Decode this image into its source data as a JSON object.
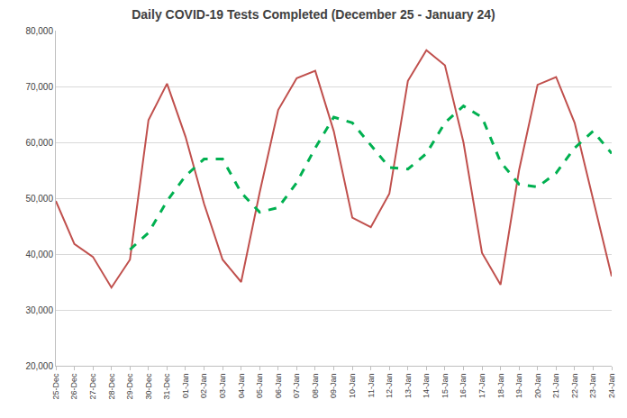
{
  "chart_data": {
    "type": "line",
    "title": "Daily COVID-19 Tests Completed (December 25 - January 24)",
    "categories": [
      "25-Dec",
      "26-Dec",
      "27-Dec",
      "28-Dec",
      "29-Dec",
      "30-Dec",
      "31-Dec",
      "01-Jan",
      "02-Jan",
      "03-Jan",
      "04-Jan",
      "05-Jan",
      "06-Jan",
      "07-Jan",
      "08-Jan",
      "09-Jan",
      "10-Jan",
      "11-Jan",
      "12-Jan",
      "13-Jan",
      "14-Jan",
      "15-Jan",
      "16-Jan",
      "17-Jan",
      "18-Jan",
      "19-Jan",
      "20-Jan",
      "21-Jan",
      "22-Jan",
      "23-Jan",
      "24-Jan"
    ],
    "series": [
      {
        "color": "#c0504d",
        "line_style": "solid",
        "values": [
          49500,
          41800,
          39500,
          34000,
          39000,
          64000,
          70500,
          61000,
          49000,
          39000,
          35000,
          51000,
          65800,
          71500,
          72800,
          62000,
          46500,
          44800,
          50800,
          71000,
          76500,
          73800,
          60000,
          40200,
          34500,
          55000,
          70300,
          71700,
          63500,
          49500,
          36000
        ]
      },
      {
        "color": "#00b050",
        "line_style": "dashed",
        "values": [
          null,
          null,
          null,
          null,
          40800,
          43800,
          49500,
          54000,
          57000,
          57000,
          51000,
          47500,
          48300,
          52800,
          59000,
          64500,
          63500,
          59500,
          55500,
          55200,
          58000,
          63500,
          66500,
          64500,
          56500,
          52500,
          52000,
          54500,
          59000,
          62000,
          58000
        ]
      }
    ],
    "ylim": [
      20000,
      80000
    ],
    "yticks": [
      {
        "value": 20000,
        "label": "20,000"
      },
      {
        "value": 30000,
        "label": "30,000"
      },
      {
        "value": 40000,
        "label": "40,000"
      },
      {
        "value": 50000,
        "label": "50,000"
      },
      {
        "value": 60000,
        "label": "60,000"
      },
      {
        "value": 70000,
        "label": "70,000"
      },
      {
        "value": 80000,
        "label": "80,000"
      }
    ],
    "grid": true
  }
}
